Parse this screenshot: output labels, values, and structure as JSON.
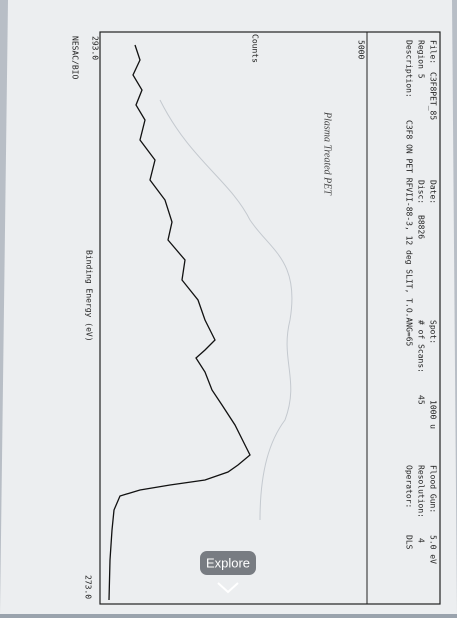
{
  "header": {
    "file_label": "File:",
    "file": "C3F8PET_85",
    "region": "Region 5",
    "description_label": "Description:",
    "date_label": "Date:",
    "disc_label": "Disc:",
    "disc": "B8826",
    "description": "C3F8 ON PET RFVII-88-3, 12 deg SLIT, T.O.ANG=65",
    "spot_label": "Spot:",
    "spot": "1000 u",
    "scans_label": "# of Scans:",
    "scans": "45",
    "flood_label": "Flood Gun:",
    "flood": "5.0 eV",
    "resolution_label": "Resolution:",
    "resolution": "4",
    "operator_label": "Operator:",
    "operator": "DLS"
  },
  "plot": {
    "y_label": "Counts",
    "y_tick": "5000",
    "note": "Plasma Treated PET",
    "x_label": "Binding Energy (eV)",
    "x_start": "293.0",
    "x_end": "273.0",
    "lab": "NESAC/BIO"
  },
  "overlay": {
    "button": "Explore"
  }
}
